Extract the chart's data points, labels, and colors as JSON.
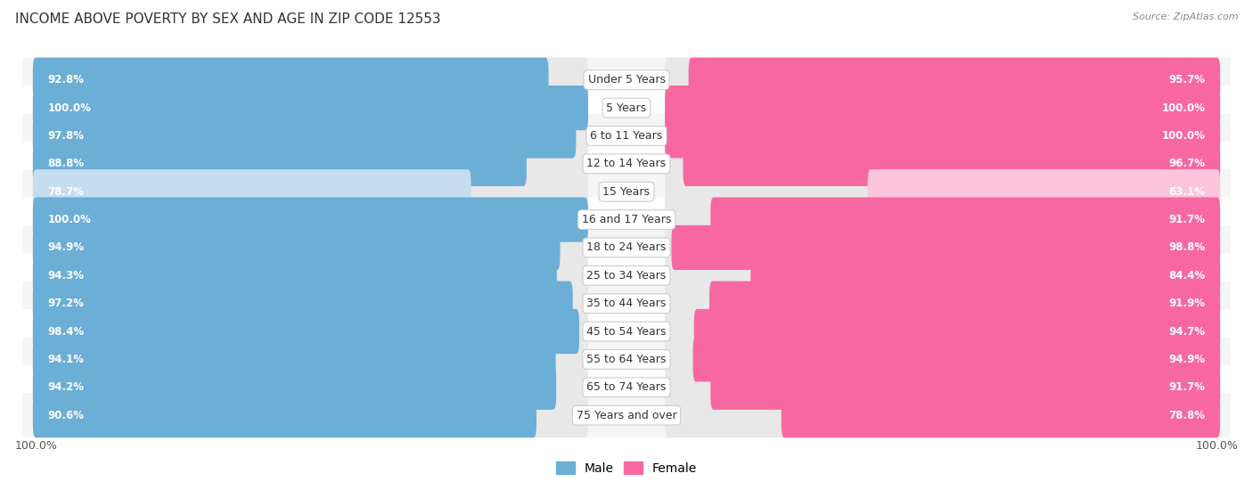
{
  "title": "INCOME ABOVE POVERTY BY SEX AND AGE IN ZIP CODE 12553",
  "source": "Source: ZipAtlas.com",
  "categories": [
    "Under 5 Years",
    "5 Years",
    "6 to 11 Years",
    "12 to 14 Years",
    "15 Years",
    "16 and 17 Years",
    "18 to 24 Years",
    "25 to 34 Years",
    "35 to 44 Years",
    "45 to 54 Years",
    "55 to 64 Years",
    "65 to 74 Years",
    "75 Years and over"
  ],
  "male_values": [
    92.8,
    100.0,
    97.8,
    88.8,
    78.7,
    100.0,
    94.9,
    94.3,
    97.2,
    98.4,
    94.1,
    94.2,
    90.6
  ],
  "female_values": [
    95.7,
    100.0,
    100.0,
    96.7,
    63.1,
    91.7,
    98.8,
    84.4,
    91.9,
    94.7,
    94.9,
    91.7,
    78.8
  ],
  "male_color": "#6baed6",
  "male_color_light": "#c6dcef",
  "female_color": "#f768a1",
  "female_color_light": "#fcc5db",
  "track_color": "#e8e8e8",
  "row_bg_even": "#f5f5f5",
  "row_bg_odd": "#ffffff",
  "background_color": "#ffffff",
  "title_fontsize": 11,
  "bar_label_fontsize": 8.5,
  "cat_label_fontsize": 9,
  "legend_male": "Male",
  "legend_female": "Female"
}
